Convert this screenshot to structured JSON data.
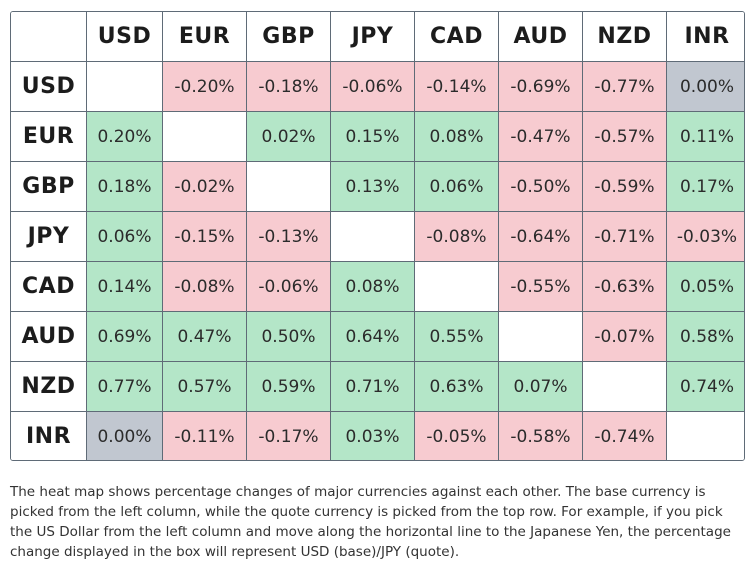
{
  "chart_data": {
    "type": "heatmap",
    "base_axis_labels": [
      "USD",
      "EUR",
      "GBP",
      "JPY",
      "CAD",
      "AUD",
      "NZD",
      "INR"
    ],
    "quote_axis_labels": [
      "USD",
      "EUR",
      "GBP",
      "JPY",
      "CAD",
      "AUD",
      "NZD",
      "INR"
    ],
    "unit": "%",
    "values": [
      [
        null,
        -0.2,
        -0.18,
        -0.06,
        -0.14,
        -0.69,
        -0.77,
        0.0
      ],
      [
        0.2,
        null,
        0.02,
        0.15,
        0.08,
        -0.47,
        -0.57,
        0.11
      ],
      [
        0.18,
        -0.02,
        null,
        0.13,
        0.06,
        -0.5,
        -0.59,
        0.17
      ],
      [
        0.06,
        -0.15,
        -0.13,
        null,
        -0.08,
        -0.64,
        -0.71,
        -0.03
      ],
      [
        0.14,
        -0.08,
        -0.06,
        0.08,
        null,
        -0.55,
        -0.63,
        0.05
      ],
      [
        0.69,
        0.47,
        0.5,
        0.64,
        0.55,
        null,
        -0.07,
        0.58
      ],
      [
        0.77,
        0.57,
        0.59,
        0.71,
        0.63,
        0.07,
        null,
        0.74
      ],
      [
        0.0,
        -0.11,
        -0.17,
        0.03,
        -0.05,
        -0.58,
        -0.74,
        null
      ]
    ],
    "colors": {
      "positive": "#b4e6c8",
      "negative": "#f7cbd0",
      "zero": "#c1c7d0",
      "diagonal": "#ffffff"
    }
  },
  "caption": "The heat map shows percentage changes of major currencies against each other. The base currency is picked from the left column, while the quote currency is picked from the top row. For example, if you pick the US Dollar from the left column and move along the horizontal line to the Japanese Yen, the percentage change displayed in the box will represent USD (base)/JPY (quote)."
}
